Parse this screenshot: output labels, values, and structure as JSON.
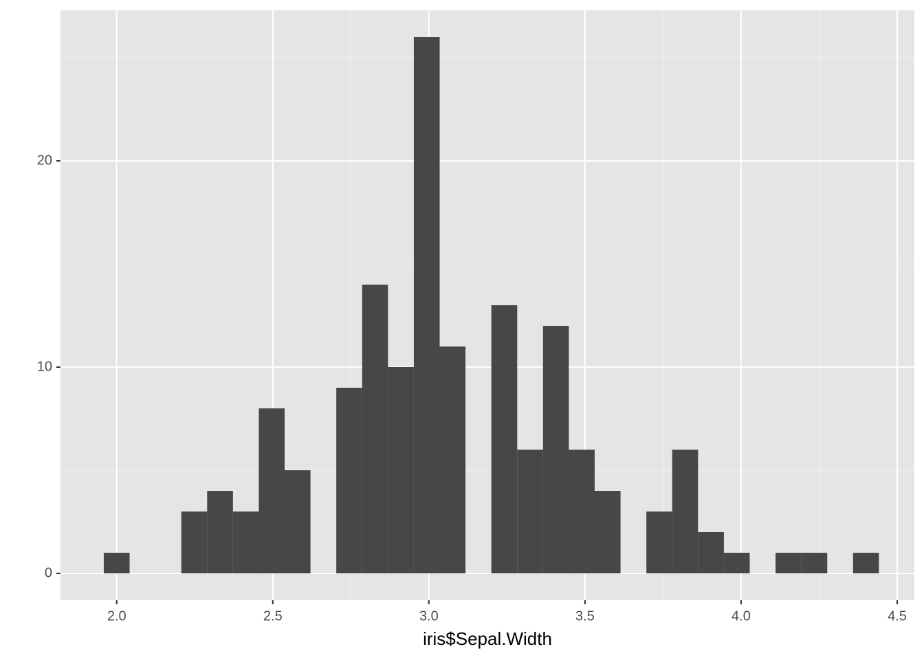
{
  "chart_data": {
    "type": "histogram",
    "x_label": "iris$Sepal.Width",
    "bins": [
      1.9586,
      2.0414,
      2.1241,
      2.2069,
      2.2897,
      2.3724,
      2.4552,
      2.5379,
      2.6207,
      2.7034,
      2.7862,
      2.869,
      2.9517,
      3.0345,
      3.1172,
      3.2,
      3.2828,
      3.3655,
      3.4483,
      3.531,
      3.6138,
      3.6966,
      3.7793,
      3.8621,
      3.9448,
      4.0276,
      4.1103,
      4.1931,
      4.2759,
      4.3586,
      4.4414
    ],
    "values": [
      1,
      0,
      0,
      3,
      4,
      3,
      8,
      5,
      0,
      9,
      14,
      10,
      26,
      11,
      0,
      13,
      6,
      12,
      6,
      4,
      0,
      3,
      6,
      2,
      1,
      0,
      1,
      1,
      0,
      1
    ],
    "color": "#474747",
    "xlim": [
      1.82,
      4.555
    ],
    "ylim": [
      -1.3,
      27.3
    ],
    "xticks": [
      {
        "value": 2,
        "label": "2.0"
      },
      {
        "value": 2.5,
        "label": "2.5"
      },
      {
        "value": 3,
        "label": "3.0"
      },
      {
        "value": 3.5,
        "label": "3.5"
      },
      {
        "value": 4,
        "label": "4.0"
      },
      {
        "value": 4.5,
        "label": "4.5"
      }
    ],
    "yticks": [
      0,
      10,
      20
    ],
    "minor_xticks": [
      2.25,
      2.75,
      3.25,
      3.75,
      4.25
    ],
    "minor_yticks": [
      5,
      15,
      25
    ],
    "grid": true
  }
}
